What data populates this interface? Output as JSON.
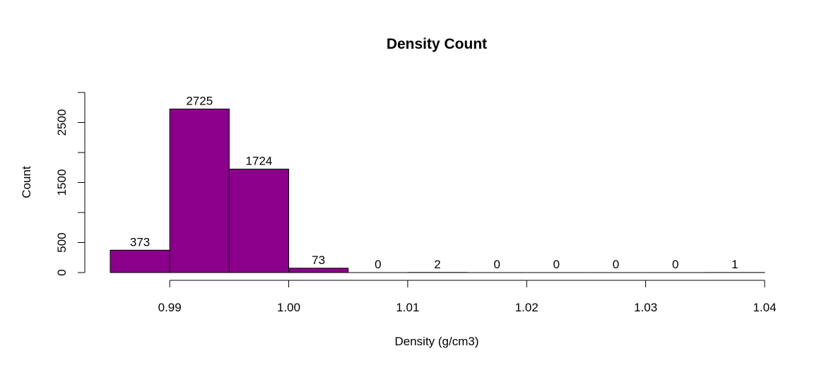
{
  "chart_data": {
    "type": "bar",
    "title": "Density Count",
    "xlabel": "Density (g/cm3)",
    "ylabel": "Count",
    "bin_edges": [
      0.985,
      0.99,
      0.995,
      1.0,
      1.005,
      1.01,
      1.015,
      1.02,
      1.025,
      1.03,
      1.035,
      1.04
    ],
    "values": [
      373,
      2725,
      1724,
      73,
      0,
      2,
      0,
      0,
      0,
      0,
      1
    ],
    "x_ticks": [
      "0.99",
      "1.00",
      "1.01",
      "1.02",
      "1.03",
      "1.04"
    ],
    "y_ticks": [
      "0",
      "500",
      "1500",
      "2500"
    ],
    "xlim": [
      0.985,
      1.04
    ],
    "ylim": [
      0,
      3000
    ],
    "bar_color": "#8B008B",
    "grid": false
  }
}
